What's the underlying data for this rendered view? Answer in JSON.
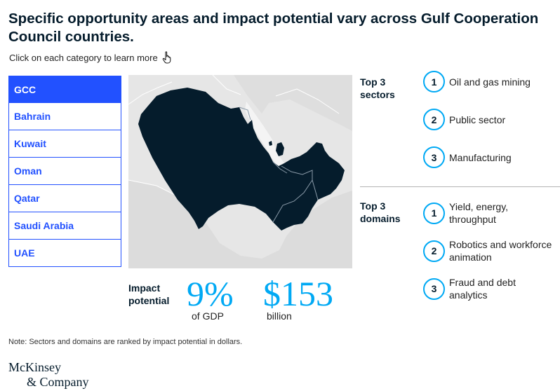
{
  "title": "Specific opportunity areas and impact potential vary across Gulf Cooperation Council countries.",
  "subtitle": "Click on each category to learn more",
  "tabs": [
    {
      "label": "GCC",
      "active": true
    },
    {
      "label": "Bahrain",
      "active": false
    },
    {
      "label": "Kuwait",
      "active": false
    },
    {
      "label": "Oman",
      "active": false
    },
    {
      "label": "Qatar",
      "active": false
    },
    {
      "label": "Saudi Arabia",
      "active": false
    },
    {
      "label": "UAE",
      "active": false
    }
  ],
  "impact": {
    "label": "Impact potential",
    "percent": "9%",
    "percent_unit": "of GDP",
    "dollars": "$153",
    "dollars_unit": "billion"
  },
  "sectors": {
    "heading": "Top 3 sectors",
    "items": [
      {
        "rank": "1",
        "label": "Oil and gas mining"
      },
      {
        "rank": "2",
        "label": "Public sector"
      },
      {
        "rank": "3",
        "label": "Manufacturing"
      }
    ]
  },
  "domains": {
    "heading": "Top 3 domains",
    "items": [
      {
        "rank": "1",
        "label": "Yield, energy, throughput"
      },
      {
        "rank": "2",
        "label": "Robotics and workforce animation"
      },
      {
        "rank": "3",
        "label": "Fraud and debt analytics"
      }
    ]
  },
  "note": "Note: Sectors and domains are ranked by impact potential in dollars.",
  "logo": {
    "line1": "McKinsey",
    "line2": "& Company"
  },
  "colors": {
    "accent": "#2251ff",
    "highlight": "#00a9f4",
    "map_fill": "#051c2c",
    "map_background": "#e6e6e6"
  }
}
